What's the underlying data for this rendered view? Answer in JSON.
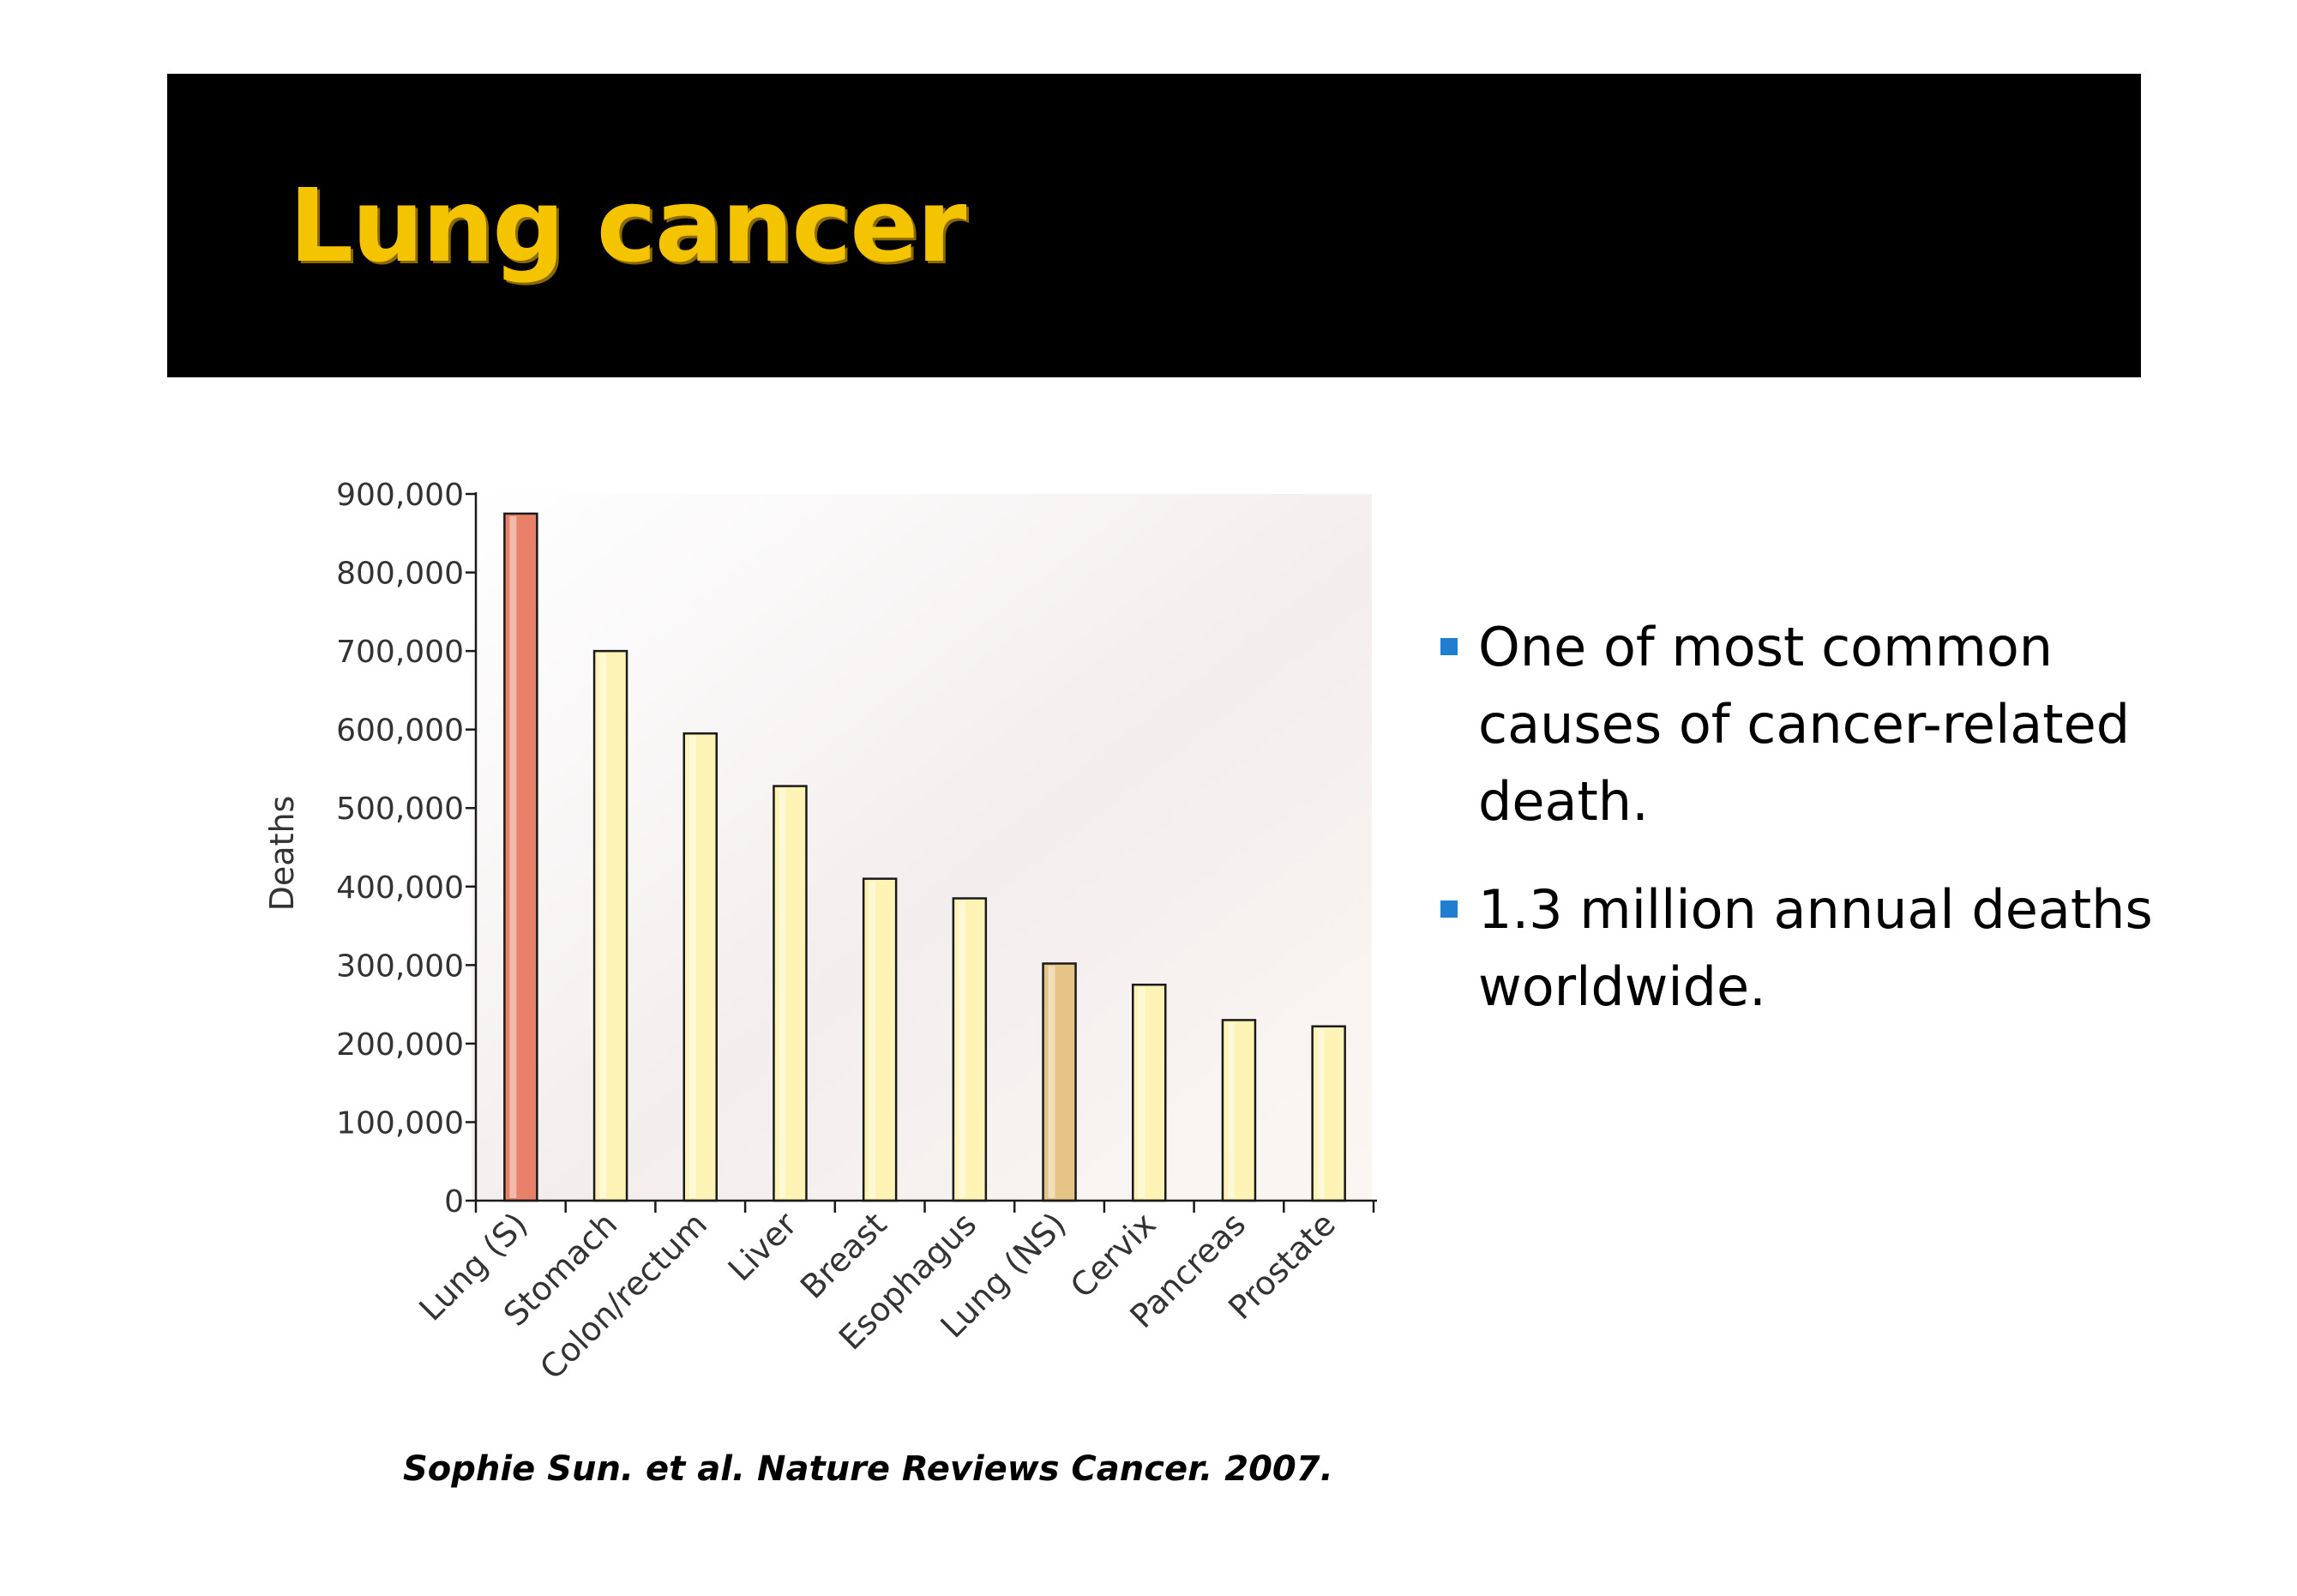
{
  "slide": {
    "title": "Lung cancer",
    "citation": "Sophie Sun. et al. Nature Reviews Cancer. 2007.",
    "bullets": [
      {
        "text": "One of most common causes of cancer-related death."
      },
      {
        "text": "1.3 million annual deaths worldwide."
      }
    ]
  },
  "colors": {
    "title_bar": "#000000",
    "title_text": "#f5c400",
    "bullet_square": "#1f7ed0",
    "bar_highlight": "#e8806a",
    "bar_default": "#fdf3b5",
    "bar_lung_ns": "#e6c488"
  },
  "chart_data": {
    "type": "bar",
    "ylabel": "Deaths",
    "xlabel": "",
    "ylim": [
      0,
      900000
    ],
    "yticks": [
      0,
      100000,
      200000,
      300000,
      400000,
      500000,
      600000,
      700000,
      800000,
      900000
    ],
    "ytick_labels": [
      "0",
      "100,000",
      "200,000",
      "300,000",
      "400,000",
      "500,000",
      "600,000",
      "700,000",
      "800,000",
      "900,000"
    ],
    "categories": [
      "Lung (S)",
      "Stomach",
      "Colon/rectum",
      "Liver",
      "Breast",
      "Esophagus",
      "Lung (NS)",
      "Cervix",
      "Pancreas",
      "Prostate"
    ],
    "values": [
      875000,
      700000,
      595000,
      528000,
      410000,
      385000,
      302000,
      275000,
      230000,
      222000
    ],
    "bar_colors": [
      "#e8806a",
      "#fdf3b5",
      "#fdf3b5",
      "#fdf3b5",
      "#fdf3b5",
      "#fdf3b5",
      "#e6c488",
      "#fdf3b5",
      "#fdf3b5",
      "#fdf3b5"
    ],
    "grid": false,
    "legend": "none"
  }
}
